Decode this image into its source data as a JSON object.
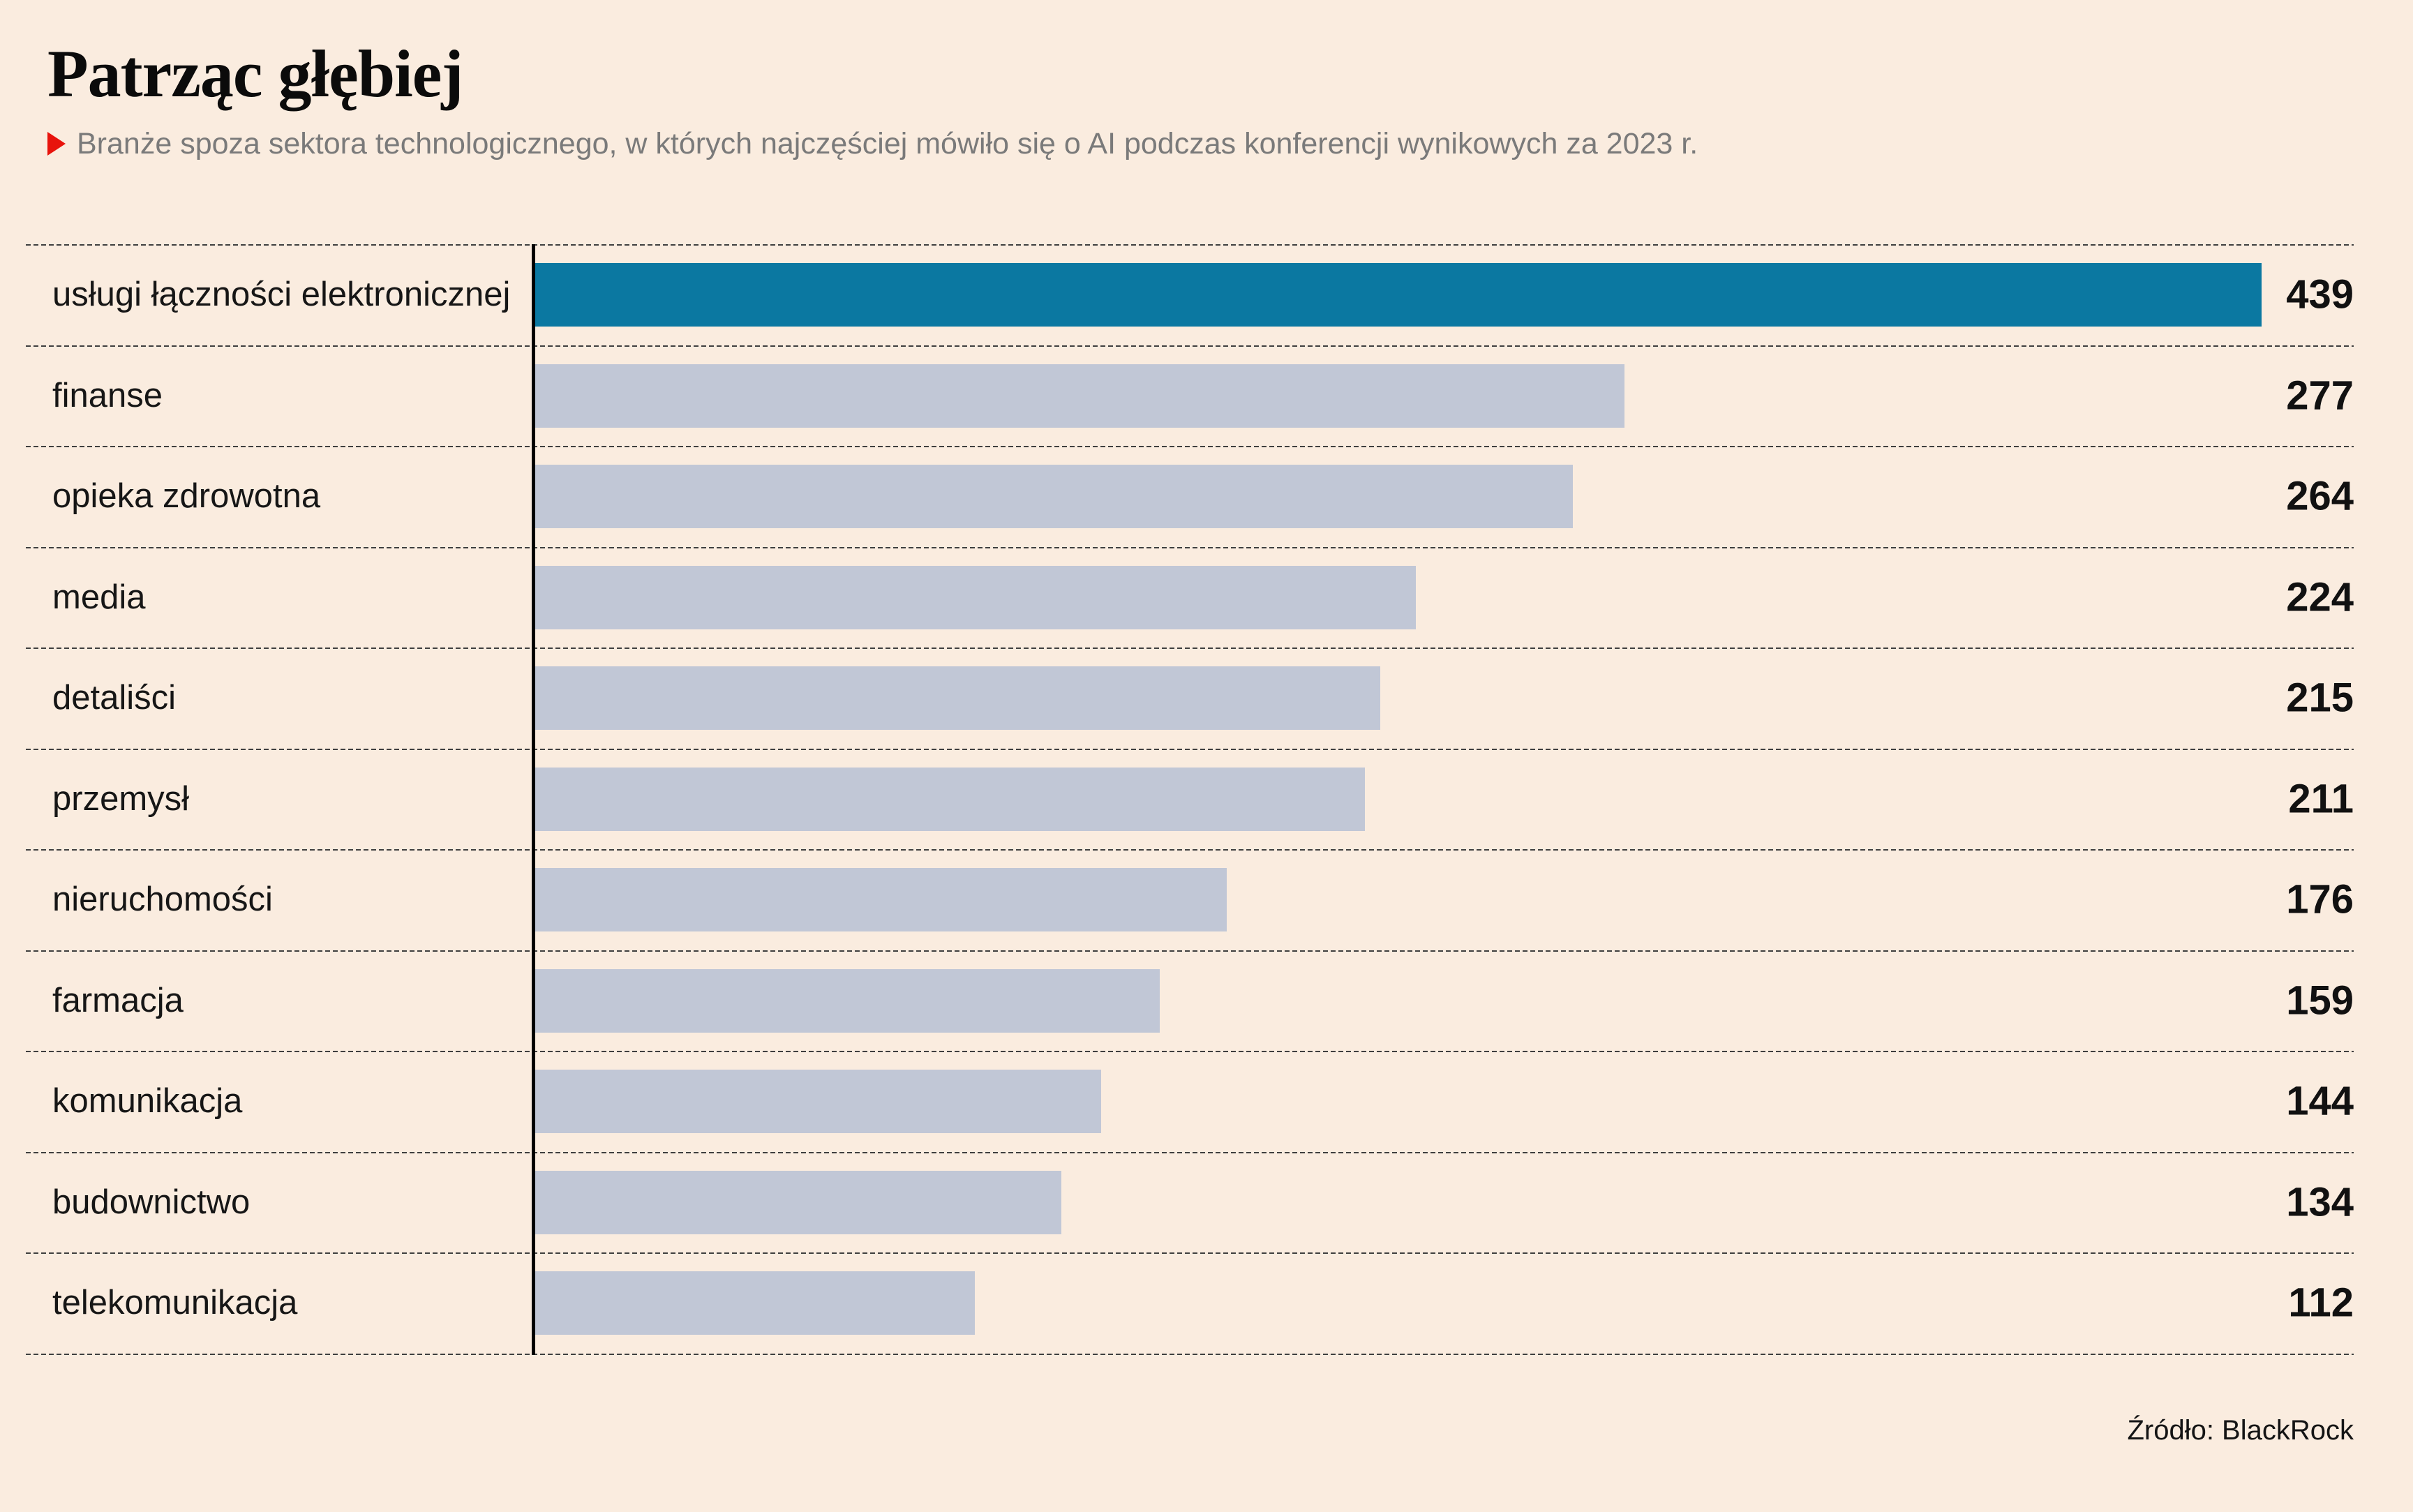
{
  "page": {
    "background": "#faecdf"
  },
  "header": {
    "title": "Patrząc głębiej",
    "subtitle": "Branże spoza sektora technologicznego, w których najczęściej mówiło się o AI podczas konferencji wynikowych za 2023 r.",
    "bullet_icon": "red-right-triangle",
    "bullet_color": "#e8130c"
  },
  "chart_data": {
    "type": "bar",
    "orientation": "horizontal",
    "title": "Patrząc głębiej",
    "categories": [
      "usługi łączności elektronicznej",
      "finanse",
      "opieka zdrowotna",
      "media",
      "detaliści",
      "przemysł",
      "nieruchomości",
      "farmacja",
      "komunikacja",
      "budownictwo",
      "telekomunikacja"
    ],
    "values": [
      439,
      277,
      264,
      224,
      215,
      211,
      176,
      159,
      144,
      134,
      112
    ],
    "xlim": [
      0,
      439
    ],
    "highlight_index": 0,
    "highlight_color": "#0b78a1",
    "bar_color": "#c1c7d6",
    "grid": "dashed horizontal row separators",
    "legend": "none",
    "value_label_position": "right"
  },
  "footer": {
    "source": "Źródło: BlackRock"
  }
}
